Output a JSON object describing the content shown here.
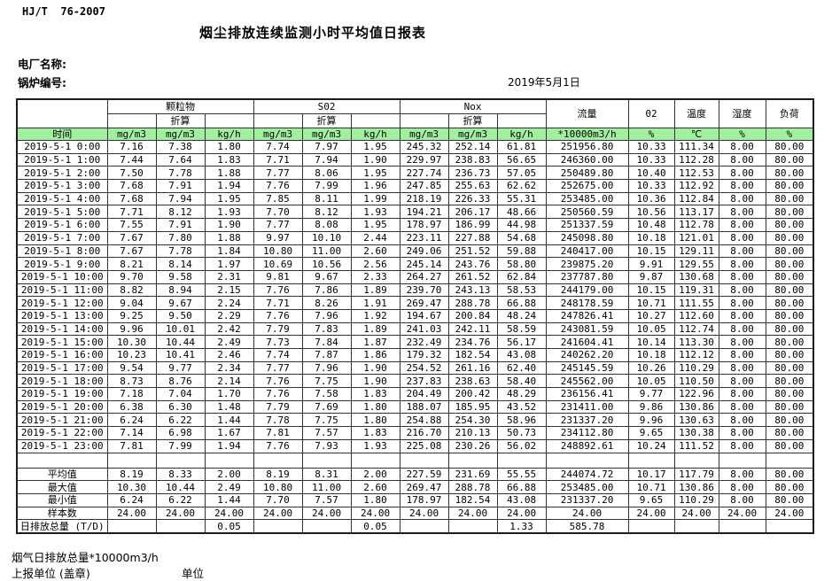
{
  "colors": {
    "header_green": "#A0F0A0",
    "border": "#333333"
  },
  "header": {
    "standard": "HJ/T  76-2007",
    "title": "烟尘排放连续监测小时平均值日报表",
    "plant_label": "电厂名称:",
    "boiler_label": "锅炉编号:",
    "date": "2019年5月1日"
  },
  "table": {
    "time_header": "时间",
    "conv_label": "折算",
    "group_labels": [
      "颗粒物",
      "S02",
      "Nox"
    ],
    "flow_header": "流量",
    "o2_header": "02",
    "temp_header": "温度",
    "humidity_header": "湿度",
    "load_header": "负荷",
    "units": [
      "mg/m3",
      "mg/m3",
      "kg/h",
      "mg/m3",
      "mg/m3",
      "kg/h",
      "mg/m3",
      "mg/m3",
      "kg/h",
      "*10000m3/h",
      "%",
      "℃",
      "%",
      "%"
    ],
    "rows": [
      {
        "time": "2019-5-1 0:00",
        "values": [
          "7.16",
          "7.38",
          "1.80",
          "7.74",
          "7.97",
          "1.95",
          "245.32",
          "252.14",
          "61.81",
          "251956.80",
          "10.33",
          "111.34",
          "8.00",
          "80.00"
        ]
      },
      {
        "time": "2019-5-1 1:00",
        "values": [
          "7.44",
          "7.64",
          "1.83",
          "7.71",
          "7.94",
          "1.90",
          "229.97",
          "238.83",
          "56.65",
          "246360.00",
          "10.33",
          "112.28",
          "8.00",
          "80.00"
        ]
      },
      {
        "time": "2019-5-1 2:00",
        "values": [
          "7.50",
          "7.78",
          "1.88",
          "7.77",
          "8.06",
          "1.95",
          "227.74",
          "236.73",
          "57.05",
          "250489.80",
          "10.40",
          "112.53",
          "8.00",
          "80.00"
        ]
      },
      {
        "time": "2019-5-1 3:00",
        "values": [
          "7.68",
          "7.91",
          "1.94",
          "7.76",
          "7.99",
          "1.96",
          "247.85",
          "255.63",
          "62.62",
          "252675.00",
          "10.33",
          "112.92",
          "8.00",
          "80.00"
        ]
      },
      {
        "time": "2019-5-1 4:00",
        "values": [
          "7.68",
          "7.94",
          "1.95",
          "7.85",
          "8.11",
          "1.99",
          "218.19",
          "226.33",
          "55.31",
          "253485.00",
          "10.36",
          "112.84",
          "8.00",
          "80.00"
        ]
      },
      {
        "time": "2019-5-1 5:00",
        "values": [
          "7.71",
          "8.12",
          "1.93",
          "7.70",
          "8.12",
          "1.93",
          "194.21",
          "206.17",
          "48.66",
          "250560.59",
          "10.56",
          "113.17",
          "8.00",
          "80.00"
        ]
      },
      {
        "time": "2019-5-1 6:00",
        "values": [
          "7.55",
          "7.91",
          "1.90",
          "7.77",
          "8.08",
          "1.95",
          "178.97",
          "186.99",
          "44.98",
          "251337.59",
          "10.48",
          "112.78",
          "8.00",
          "80.00"
        ]
      },
      {
        "time": "2019-5-1 7:00",
        "values": [
          "7.67",
          "7.80",
          "1.88",
          "9.97",
          "10.10",
          "2.44",
          "223.11",
          "227.88",
          "54.68",
          "245098.80",
          "10.18",
          "121.01",
          "8.00",
          "80.00"
        ]
      },
      {
        "time": "2019-5-1 8:00",
        "values": [
          "7.67",
          "7.78",
          "1.84",
          "10.80",
          "11.00",
          "2.60",
          "249.06",
          "251.52",
          "59.88",
          "240417.00",
          "10.15",
          "129.11",
          "8.00",
          "80.00"
        ]
      },
      {
        "time": "2019-5-1 9:00",
        "values": [
          "8.21",
          "8.14",
          "1.97",
          "10.69",
          "10.56",
          "2.56",
          "245.14",
          "243.76",
          "58.80",
          "239875.20",
          "9.91",
          "129.55",
          "8.00",
          "80.00"
        ]
      },
      {
        "time": "2019-5-1 10:00",
        "values": [
          "9.70",
          "9.58",
          "2.31",
          "9.81",
          "9.67",
          "2.33",
          "264.27",
          "261.52",
          "62.84",
          "237787.80",
          "9.87",
          "130.68",
          "8.00",
          "80.00"
        ]
      },
      {
        "time": "2019-5-1 11:00",
        "values": [
          "8.82",
          "8.94",
          "2.15",
          "7.76",
          "7.86",
          "1.89",
          "239.70",
          "243.13",
          "58.53",
          "244179.00",
          "10.15",
          "119.31",
          "8.00",
          "80.00"
        ]
      },
      {
        "time": "2019-5-1 12:00",
        "values": [
          "9.04",
          "9.67",
          "2.24",
          "7.71",
          "8.26",
          "1.91",
          "269.47",
          "288.78",
          "66.88",
          "248178.59",
          "10.71",
          "111.55",
          "8.00",
          "80.00"
        ]
      },
      {
        "time": "2019-5-1 13:00",
        "values": [
          "9.25",
          "9.50",
          "2.29",
          "7.76",
          "7.96",
          "1.92",
          "194.67",
          "200.84",
          "48.24",
          "247826.41",
          "10.27",
          "112.60",
          "8.00",
          "80.00"
        ]
      },
      {
        "time": "2019-5-1 14:00",
        "values": [
          "9.96",
          "10.01",
          "2.42",
          "7.79",
          "7.83",
          "1.89",
          "241.03",
          "242.11",
          "58.59",
          "243081.59",
          "10.05",
          "112.74",
          "8.00",
          "80.00"
        ]
      },
      {
        "time": "2019-5-1 15:00",
        "values": [
          "10.30",
          "10.44",
          "2.49",
          "7.73",
          "7.84",
          "1.87",
          "232.49",
          "234.76",
          "56.17",
          "241604.41",
          "10.14",
          "113.30",
          "8.00",
          "80.00"
        ]
      },
      {
        "time": "2019-5-1 16:00",
        "values": [
          "10.23",
          "10.41",
          "2.46",
          "7.74",
          "7.87",
          "1.86",
          "179.32",
          "182.54",
          "43.08",
          "240262.20",
          "10.18",
          "112.12",
          "8.00",
          "80.00"
        ]
      },
      {
        "time": "2019-5-1 17:00",
        "values": [
          "9.54",
          "9.77",
          "2.34",
          "7.77",
          "7.96",
          "1.90",
          "254.52",
          "261.16",
          "62.40",
          "245145.59",
          "10.26",
          "110.29",
          "8.00",
          "80.00"
        ]
      },
      {
        "time": "2019-5-1 18:00",
        "values": [
          "8.73",
          "8.76",
          "2.14",
          "7.76",
          "7.75",
          "1.90",
          "237.83",
          "238.63",
          "58.40",
          "245562.00",
          "10.05",
          "110.50",
          "8.00",
          "80.00"
        ]
      },
      {
        "time": "2019-5-1 19:00",
        "values": [
          "7.18",
          "7.04",
          "1.70",
          "7.76",
          "7.58",
          "1.83",
          "204.49",
          "200.42",
          "48.29",
          "236156.41",
          "9.77",
          "122.96",
          "8.00",
          "80.00"
        ]
      },
      {
        "time": "2019-5-1 20:00",
        "values": [
          "6.38",
          "6.30",
          "1.48",
          "7.79",
          "7.69",
          "1.80",
          "188.07",
          "185.95",
          "43.52",
          "231411.00",
          "9.86",
          "130.86",
          "8.00",
          "80.00"
        ]
      },
      {
        "time": "2019-5-1 21:00",
        "values": [
          "6.24",
          "6.22",
          "1.44",
          "7.78",
          "7.75",
          "1.80",
          "254.88",
          "254.30",
          "58.96",
          "231337.20",
          "9.96",
          "130.63",
          "8.00",
          "80.00"
        ]
      },
      {
        "time": "2019-5-1 22:00",
        "values": [
          "7.14",
          "6.98",
          "1.67",
          "7.81",
          "7.57",
          "1.83",
          "216.70",
          "210.13",
          "50.73",
          "234112.80",
          "9.65",
          "130.38",
          "8.00",
          "80.00"
        ]
      },
      {
        "time": "2019-5-1 23:00",
        "values": [
          "7.81",
          "7.99",
          "1.94",
          "7.76",
          "7.93",
          "1.93",
          "225.08",
          "230.26",
          "56.02",
          "248892.61",
          "10.24",
          "111.52",
          "8.00",
          "80.00"
        ]
      }
    ],
    "summary": [
      {
        "label": "平均值",
        "values": [
          "8.19",
          "8.33",
          "2.00",
          "8.19",
          "8.31",
          "2.00",
          "227.59",
          "231.69",
          "55.55",
          "244074.72",
          "10.17",
          "117.79",
          "8.00",
          "80.00"
        ]
      },
      {
        "label": "最大值",
        "values": [
          "10.30",
          "10.44",
          "2.49",
          "10.80",
          "11.00",
          "2.60",
          "269.47",
          "288.78",
          "66.88",
          "253485.00",
          "10.71",
          "130.86",
          "8.00",
          "80.00"
        ]
      },
      {
        "label": "最小值",
        "values": [
          "6.24",
          "6.22",
          "1.44",
          "7.70",
          "7.57",
          "1.80",
          "178.97",
          "182.54",
          "43.08",
          "231337.20",
          "9.65",
          "110.29",
          "8.00",
          "80.00"
        ]
      },
      {
        "label": "样本数",
        "values": [
          "24.00",
          "24.00",
          "24.00",
          "24.00",
          "24.00",
          "24.00",
          "24.00",
          "24.00",
          "24.00",
          "24.00",
          "24.00",
          "24.00",
          "24.00",
          "24.00"
        ]
      }
    ],
    "daily_total": {
      "label": "日排放总量 (T/D)",
      "values": [
        "",
        "",
        "0.05",
        "",
        "",
        "0.05",
        "",
        "",
        "1.33",
        "585.78",
        "",
        "",
        "",
        ""
      ]
    }
  },
  "footer": {
    "flow_note": "烟气日排放总量*10000m3/h",
    "report_unit_label": "上报单位 (盖章)",
    "unit_label": "单位"
  }
}
